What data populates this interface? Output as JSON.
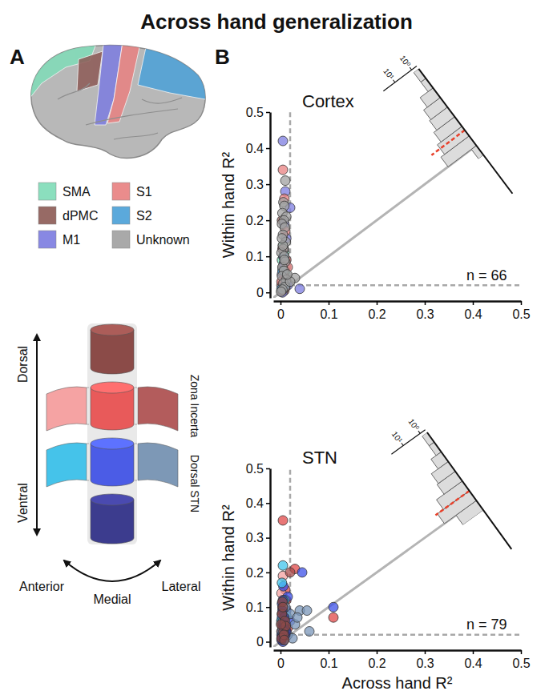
{
  "title": "Across hand generalization",
  "panel_labels": [
    "A",
    "B"
  ],
  "stn_diagram": {
    "vertical": [
      "Dorsal",
      "Ventral"
    ],
    "rows": [
      "Zona Incerta",
      "Dorsal STN"
    ],
    "horizontal": [
      "Anterior",
      "Medial",
      "Lateral"
    ]
  },
  "chart_data": [
    {
      "type": "scatter",
      "title": "Cortex",
      "y_label": "Within hand R²",
      "xlim": [
        -0.015,
        0.5
      ],
      "ylim": [
        -0.015,
        0.5
      ],
      "xticks": [
        0,
        0.1,
        0.2,
        0.3,
        0.4,
        0.5
      ],
      "yticks": [
        0,
        0.1,
        0.2,
        0.3,
        0.4,
        0.5
      ],
      "threshold": 0.02,
      "annotation": "n = 66",
      "series": [
        {
          "name": "SMA",
          "color": "#7fdcb8",
          "x": [
            0.005,
            0.008,
            0.003,
            0.01,
            0.004,
            0.006
          ],
          "values": [
            0.13,
            0.11,
            0.09,
            0.06,
            0.03,
            0.01
          ]
        },
        {
          "name": "dPMC",
          "color": "#8c5a55",
          "x": [
            0.003,
            0.007,
            0.005,
            0.01,
            0.002,
            0.008
          ],
          "values": [
            0.2,
            0.12,
            0.07,
            0.04,
            0.02,
            0.005
          ]
        },
        {
          "name": "M1",
          "color": "#7c7ce0",
          "x": [
            0.005,
            0.01,
            0.02,
            0.008,
            0.012,
            0.006,
            0.003,
            0.01,
            0.04,
            0.004,
            0.007,
            0.015
          ],
          "values": [
            0.42,
            0.28,
            0.235,
            0.19,
            0.15,
            0.1,
            0.05,
            0.03,
            0.01,
            0,
            0.08,
            0.02
          ]
        },
        {
          "name": "S1",
          "color": "#e88080",
          "x": [
            0.005,
            0.008,
            0.01,
            0.004,
            0.012,
            0.006,
            0.002,
            0.01,
            0.003,
            0.015
          ],
          "values": [
            0.34,
            0.26,
            0.17,
            0.12,
            0.09,
            0.05,
            0.03,
            0.015,
            0.005,
            0.07
          ]
        },
        {
          "name": "S2",
          "color": "#4aa0d8",
          "x": [
            0.006,
            0.004,
            0.01,
            0.002
          ],
          "values": [
            0.1,
            0.06,
            0.02,
            0.01
          ]
        },
        {
          "name": "Unknown",
          "color": "#a0a0a0",
          "x": [
            0.01,
            0.006,
            0.008,
            0.004,
            0.012,
            0.007,
            0.003,
            0.009,
            0.005,
            0.011,
            0.006,
            0.002,
            0.008,
            0.01,
            0.004,
            0.007,
            0.003,
            0.012,
            0.006,
            0.03,
            0.009,
            0.004,
            0.02,
            0.001,
            0.014,
            0.005,
            0.008,
            0.003
          ],
          "values": [
            0.31,
            0.25,
            0.24,
            0.22,
            0.21,
            0.2,
            0.19,
            0.18,
            0.16,
            0.14,
            0.12,
            0.11,
            0.1,
            0.085,
            0.07,
            0.06,
            0.045,
            0.035,
            0.025,
            0.04,
            0.015,
            0.008,
            0.03,
            0.002,
            0.05,
            0.13,
            0.09,
            0.15
          ]
        }
      ],
      "histogram": {
        "type": "histogram",
        "log": "y",
        "color": "#dcdcdc",
        "bins": [
          -0.05,
          0,
          0.05,
          0.1,
          0.15,
          0.2,
          0.25,
          0.3,
          0.35,
          0.4
        ],
        "values": [
          1,
          25,
          15,
          9,
          6,
          5,
          3,
          1,
          1
        ],
        "mean": 0.08,
        "ylim": [
          0.5,
          50
        ],
        "yticks": [
          {
            "value": 1,
            "label": "10⁰"
          },
          {
            "value": 10,
            "label": "10¹"
          }
        ]
      }
    },
    {
      "type": "scatter",
      "title": "STN",
      "x_label": "Across hand R²",
      "y_label": "Within hand R²",
      "xlim": [
        -0.015,
        0.5
      ],
      "ylim": [
        -0.015,
        0.5
      ],
      "xticks": [
        0,
        0.1,
        0.2,
        0.3,
        0.4,
        0.5
      ],
      "yticks": [
        0,
        0.1,
        0.2,
        0.3,
        0.4,
        0.5
      ],
      "threshold": 0.02,
      "annotation": "n = 79",
      "series": [
        {
          "color": "#e04848",
          "x": [
            0.005,
            0.03,
            0.11,
            0.01,
            0.004,
            0.008,
            0.002,
            0.006,
            0.012,
            0.003,
            0.015,
            0.009
          ],
          "values": [
            0.35,
            0.21,
            0.07,
            0.15,
            0.1,
            0.06,
            0.03,
            0.01,
            0.12,
            0.08,
            0.04,
            0.02
          ]
        },
        {
          "color": "#f4a0a0",
          "x": [
            0.005,
            0.002,
            0.008,
            0.004,
            0.01,
            0.003,
            0.006
          ],
          "values": [
            0.19,
            0.14,
            0.09,
            0.05,
            0.02,
            0.01,
            0.07
          ]
        },
        {
          "color": "#a84c4c",
          "x": [
            0.02,
            0.007,
            0.004,
            0.012,
            0.002
          ],
          "values": [
            0.2,
            0.11,
            0.04,
            0.015,
            0.06
          ]
        },
        {
          "color": "#3c50e8",
          "x": [
            0.045,
            0.11,
            0.015,
            0.006,
            0.003,
            0.008,
            0.004,
            0.01,
            0.002,
            0.007,
            0.02,
            0.005,
            0.012,
            0.009,
            0.003
          ],
          "values": [
            0.2,
            0.1,
            0.13,
            0.16,
            0.11,
            0.08,
            0.05,
            0.03,
            0.02,
            0.01,
            0.06,
            0,
            0.09,
            0.04,
            0.07
          ]
        },
        {
          "color": "#40c4ec",
          "x": [
            0.005,
            0.003,
            0.008,
            0.006,
            0.002,
            0.01,
            0.004,
            0.007,
            0.012
          ],
          "values": [
            0.22,
            0.17,
            0.12,
            0.095,
            0.06,
            0.035,
            0.018,
            0.005,
            0.075
          ]
        },
        {
          "color": "#7a96b8",
          "x": [
            0.04,
            0.055,
            0.06,
            0.02,
            0.03,
            0.01,
            0.005,
            0.015,
            0.008,
            0.025,
            0.003,
            0.035
          ],
          "values": [
            0.09,
            0.09,
            0.03,
            0.08,
            0.05,
            0.1,
            0.06,
            0.02,
            0.045,
            0.01,
            0.03,
            0.07
          ]
        },
        {
          "color": "#34348c",
          "x": [
            0.004,
            0.006,
            0.01,
            0.002,
            0.008,
            0.005,
            0.012,
            0.003,
            0.007
          ],
          "values": [
            0.09,
            0.05,
            0.02,
            0.005,
            0.07,
            0.12,
            0.03,
            0.015,
            0.04
          ]
        },
        {
          "color": "#8c4a48",
          "x": [
            0.003,
            0.006,
            0.002,
            0.009,
            0.004,
            0.011,
            0.007,
            0.005,
            0.008,
            0.001
          ],
          "values": [
            0.08,
            0.03,
            0.01,
            0.06,
            0.115,
            0.045,
            0.02,
            0.1,
            0.005,
            0.05
          ]
        }
      ],
      "histogram": {
        "type": "histogram",
        "log": "y",
        "color": "#dcdcdc",
        "bins": [
          -0.05,
          0,
          0.05,
          0.1,
          0.15,
          0.2,
          0.25,
          0.3,
          0.35
        ],
        "values": [
          8,
          39,
          17,
          6,
          5,
          2,
          1,
          1
        ],
        "mean": 0.05,
        "ylim": [
          0.5,
          50
        ],
        "yticks": [
          {
            "value": 1,
            "label": "10⁰"
          },
          {
            "value": 10,
            "label": "10¹"
          }
        ]
      }
    }
  ]
}
